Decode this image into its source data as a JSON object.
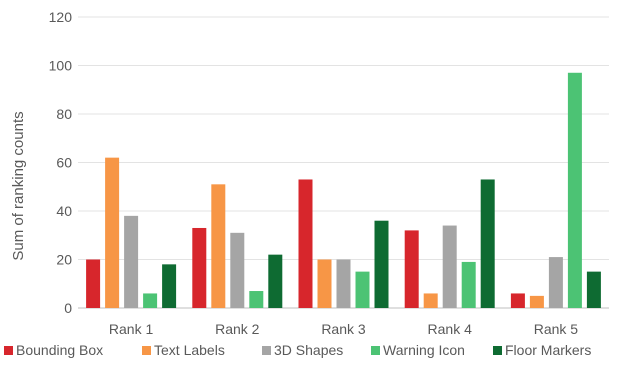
{
  "chart_data": {
    "type": "bar",
    "title": "",
    "xlabel": "",
    "ylabel": "Sum of ranking counts",
    "ylim": [
      0,
      120
    ],
    "yticks": [
      0,
      20,
      40,
      60,
      80,
      100,
      120
    ],
    "grid": true,
    "legend_position": "bottom",
    "categories": [
      "Rank 1",
      "Rank 2",
      "Rank 3",
      "Rank 4",
      "Rank 5"
    ],
    "series": [
      {
        "name": "Bounding Box",
        "color": "#d7262c",
        "values": [
          20,
          33,
          53,
          32,
          6
        ]
      },
      {
        "name": "Text Labels",
        "color": "#f79646",
        "values": [
          62,
          51,
          20,
          6,
          5
        ]
      },
      {
        "name": "3D Shapes",
        "color": "#a5a5a5",
        "values": [
          38,
          31,
          20,
          34,
          21
        ]
      },
      {
        "name": "Warning Icon",
        "color": "#4cc374",
        "values": [
          6,
          7,
          15,
          19,
          97
        ]
      },
      {
        "name": "Floor Markers",
        "color": "#0e6b32",
        "values": [
          18,
          22,
          36,
          53,
          15
        ]
      }
    ]
  }
}
